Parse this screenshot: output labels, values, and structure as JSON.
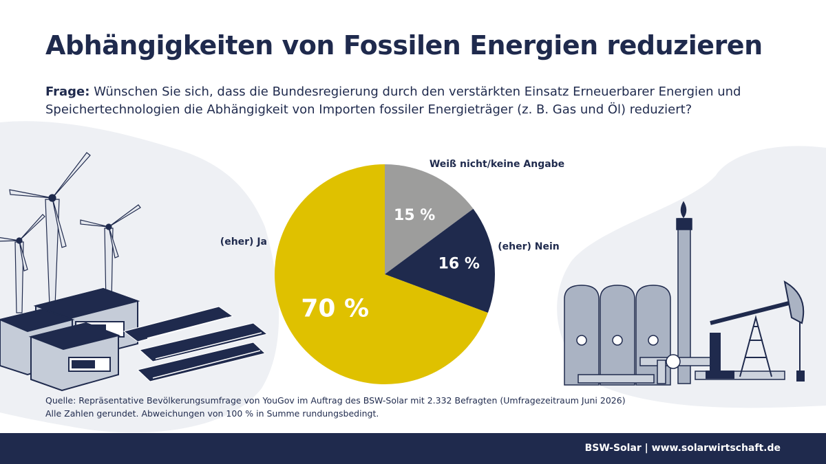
{
  "header": {
    "title": "Abhängigkeiten von Fossilen Energien reduzieren",
    "question_label": "Frage:",
    "question_text": "Wünschen Sie sich, dass die Bundesregierung durch den verstärkten Einsatz Erneuerbarer Energien und Speichertechnologien die Abhängigkeit von Importen fossiler Energieträger (z. B. Gas und Öl) reduziert?"
  },
  "chart_data": {
    "type": "pie",
    "title": "",
    "slices": [
      {
        "label": "Weiß nicht/keine Angabe",
        "value": 15,
        "display": "15 %",
        "color": "#9d9d9c"
      },
      {
        "label": "(eher) Nein",
        "value": 16,
        "display": "16 %",
        "color": "#1f2a4d"
      },
      {
        "label": "(eher) Ja",
        "value": 70,
        "display": "70 %",
        "color": "#dfc100"
      }
    ]
  },
  "source": {
    "line1": "Quelle: Repräsentative Bevölkerungsumfrage von YouGov im Auftrag des BSW-Solar mit 2.332 Befragten (Umfragezeitraum Juni 2026)",
    "line2": "Alle Zahlen gerundet. Abweichungen von 100 % in Summe rundungsbedingt."
  },
  "footer": {
    "text": "BSW-Solar | www.solarwirtschaft.de"
  },
  "colors": {
    "navy": "#1f2a4d",
    "yellow": "#dfc100",
    "gray": "#9d9d9c",
    "blob": "#eef0f4",
    "illustration_fill": "#aab3c3"
  },
  "illustrations": {
    "left": [
      "wind-turbine-icon",
      "battery-storage-icon",
      "solar-panel-icon"
    ],
    "right": [
      "storage-tank-icon",
      "chimney-flame-icon",
      "oil-pump-icon"
    ]
  }
}
